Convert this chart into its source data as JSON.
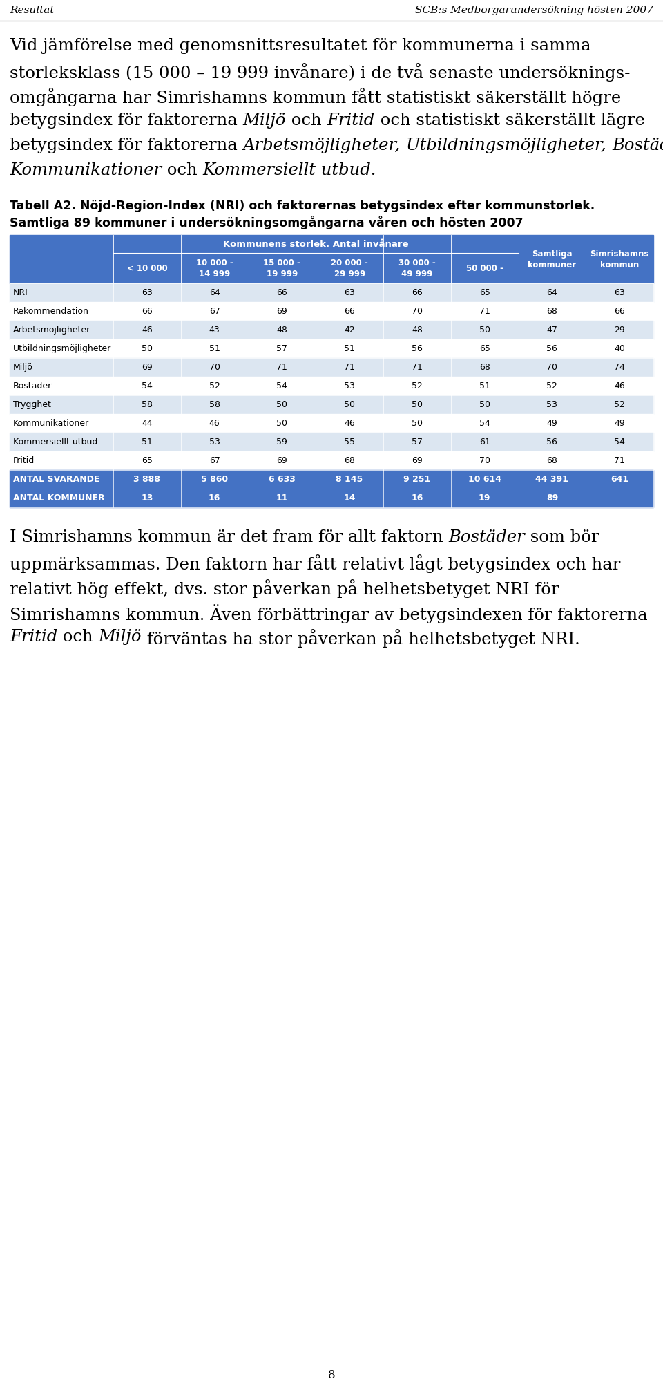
{
  "header_left": "Resultat",
  "header_right": "SCB:s Medborgarundersökning hösten 2007",
  "table_title": "Tabell A2. Nöjd-Region-Index (NRI) och faktorernas betygsindex efter kommunstorlek.",
  "table_subtitle": "Samtliga 89 kommuner i undersökningsomgångarna våren och hösten 2007",
  "col_header_main": "Kommunens storlek. Antal invånare",
  "col_headers": [
    "< 10 000",
    "10 000 -\n14 999",
    "15 000 -\n19 999",
    "20 000 -\n29 999",
    "30 000 -\n49 999",
    "50 000 -",
    "Samtliga\nkommuner",
    "Simrishamns\nkommun"
  ],
  "row_labels": [
    "NRI",
    "Rekommendation",
    "Arbetsmöjligheter",
    "Utbildningsmöjligheter",
    "Miljö",
    "Bostäder",
    "Trygghet",
    "Kommunikationer",
    "Kommersiellt utbud",
    "Fritid",
    "ANTAL SVARANDE",
    "ANTAL KOMMUNER"
  ],
  "table_data": [
    [
      63,
      64,
      66,
      63,
      66,
      65,
      64,
      63
    ],
    [
      66,
      67,
      69,
      66,
      70,
      71,
      68,
      66
    ],
    [
      46,
      43,
      48,
      42,
      48,
      50,
      47,
      29
    ],
    [
      50,
      51,
      57,
      51,
      56,
      65,
      56,
      40
    ],
    [
      69,
      70,
      71,
      71,
      71,
      68,
      70,
      74
    ],
    [
      54,
      52,
      54,
      53,
      52,
      51,
      52,
      46
    ],
    [
      58,
      58,
      50,
      50,
      50,
      50,
      53,
      52
    ],
    [
      44,
      46,
      50,
      46,
      50,
      54,
      49,
      49
    ],
    [
      51,
      53,
      59,
      55,
      57,
      61,
      56,
      54
    ],
    [
      65,
      67,
      69,
      68,
      69,
      70,
      68,
      71
    ],
    [
      "3 888",
      "5 860",
      "6 633",
      "8 145",
      "9 251",
      "10 614",
      "44 391",
      "641"
    ],
    [
      "13",
      "16",
      "11",
      "14",
      "16",
      "19",
      "89",
      ""
    ]
  ],
  "page_number": "8",
  "table_header_bg": "#4472c4",
  "table_header_text": "#ffffff",
  "table_row_bg_even": "#dce6f1",
  "table_row_bg_odd": "#ffffff",
  "table_bottom_bg": "#4472c4",
  "table_bottom_text": "#ffffff",
  "p1_lines": [
    [
      {
        "t": "Vid jämförelse med genomsnittsresultatet för kommunerna i samma",
        "i": false
      }
    ],
    [
      {
        "t": "storleksklass (15 000 – 19 999 invånare) i de två senaste undersöknings-",
        "i": false
      }
    ],
    [
      {
        "t": "omgångarna har Simrishamns kommun fått statistiskt säkerställt högre",
        "i": false
      }
    ],
    [
      {
        "t": "betygsindex för faktorerna ",
        "i": false
      },
      {
        "t": "Miljö",
        "i": true
      },
      {
        "t": " och ",
        "i": false
      },
      {
        "t": "Fritid",
        "i": true
      },
      {
        "t": " och statistiskt säkerställt lägre",
        "i": false
      }
    ],
    [
      {
        "t": "betygsindex för faktorerna ",
        "i": false
      },
      {
        "t": "Arbetsmöjligheter,",
        "i": true
      },
      {
        "t": " ",
        "i": false
      },
      {
        "t": "Utbildningsmöjligheter,",
        "i": true
      },
      {
        "t": " ",
        "i": false
      },
      {
        "t": "Bostäder,",
        "i": true
      }
    ],
    [
      {
        "t": "Kommunikationer",
        "i": true
      },
      {
        "t": " och ",
        "i": false
      },
      {
        "t": "Kommersiellt utbud.",
        "i": true
      }
    ]
  ],
  "p2_lines": [
    [
      {
        "t": "I Simrishamns kommun är det fram för allt faktorn ",
        "i": false
      },
      {
        "t": "Bostäder",
        "i": true
      },
      {
        "t": " som bör",
        "i": false
      }
    ],
    [
      {
        "t": "uppmärksammas. Den faktorn har fått relativt lågt betygsindex och har",
        "i": false
      }
    ],
    [
      {
        "t": "relativt hög effekt, dvs. stor påverkan på helhetsbetyget NRI för",
        "i": false
      }
    ],
    [
      {
        "t": "Simrishamns kommun. Även förbättringar av betygsindexen för faktorerna",
        "i": false
      }
    ],
    [
      {
        "t": "Fritid",
        "i": true
      },
      {
        "t": " och ",
        "i": false
      },
      {
        "t": "Miljö",
        "i": true
      },
      {
        "t": " förväntas ha stor påverkan på helhetsbetyget NRI.",
        "i": false
      }
    ]
  ]
}
